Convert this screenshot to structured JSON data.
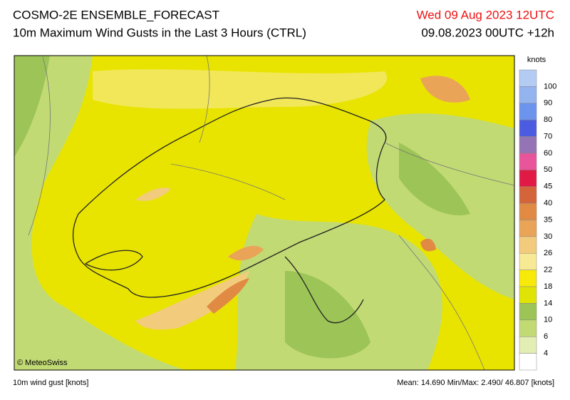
{
  "header": {
    "title": "COSMO-2E ENSEMBLE_FORECAST",
    "subtitle": "10m Maximum Wind Gusts in the Last 3 Hours (CTRL)",
    "valid_time": "Wed 09 Aug 2023 12UTC",
    "run_time": "09.08.2023 00UTC +12h"
  },
  "legend": {
    "unit": "knots",
    "levels": [
      100,
      90,
      80,
      70,
      60,
      50,
      45,
      40,
      35,
      30,
      26,
      22,
      18,
      14,
      10,
      6,
      4
    ],
    "colors": [
      "#b4ccf4",
      "#94b4f0",
      "#6c94ec",
      "#4c5ce0",
      "#9474b4",
      "#e8559a",
      "#e01a44",
      "#d4643a",
      "#e08a44",
      "#eaa458",
      "#f2cc7c",
      "#f8ea94",
      "#f8ea08",
      "#e0e404",
      "#9cc456",
      "#c2da74",
      "#e2eeb4",
      "#ffffff"
    ]
  },
  "credit": "© MeteoSwiss",
  "footer": {
    "variable": "10m wind gust [knots]",
    "stats": "Mean: 14.690 Min/Max:  2.490/ 46.807 [knots]"
  }
}
